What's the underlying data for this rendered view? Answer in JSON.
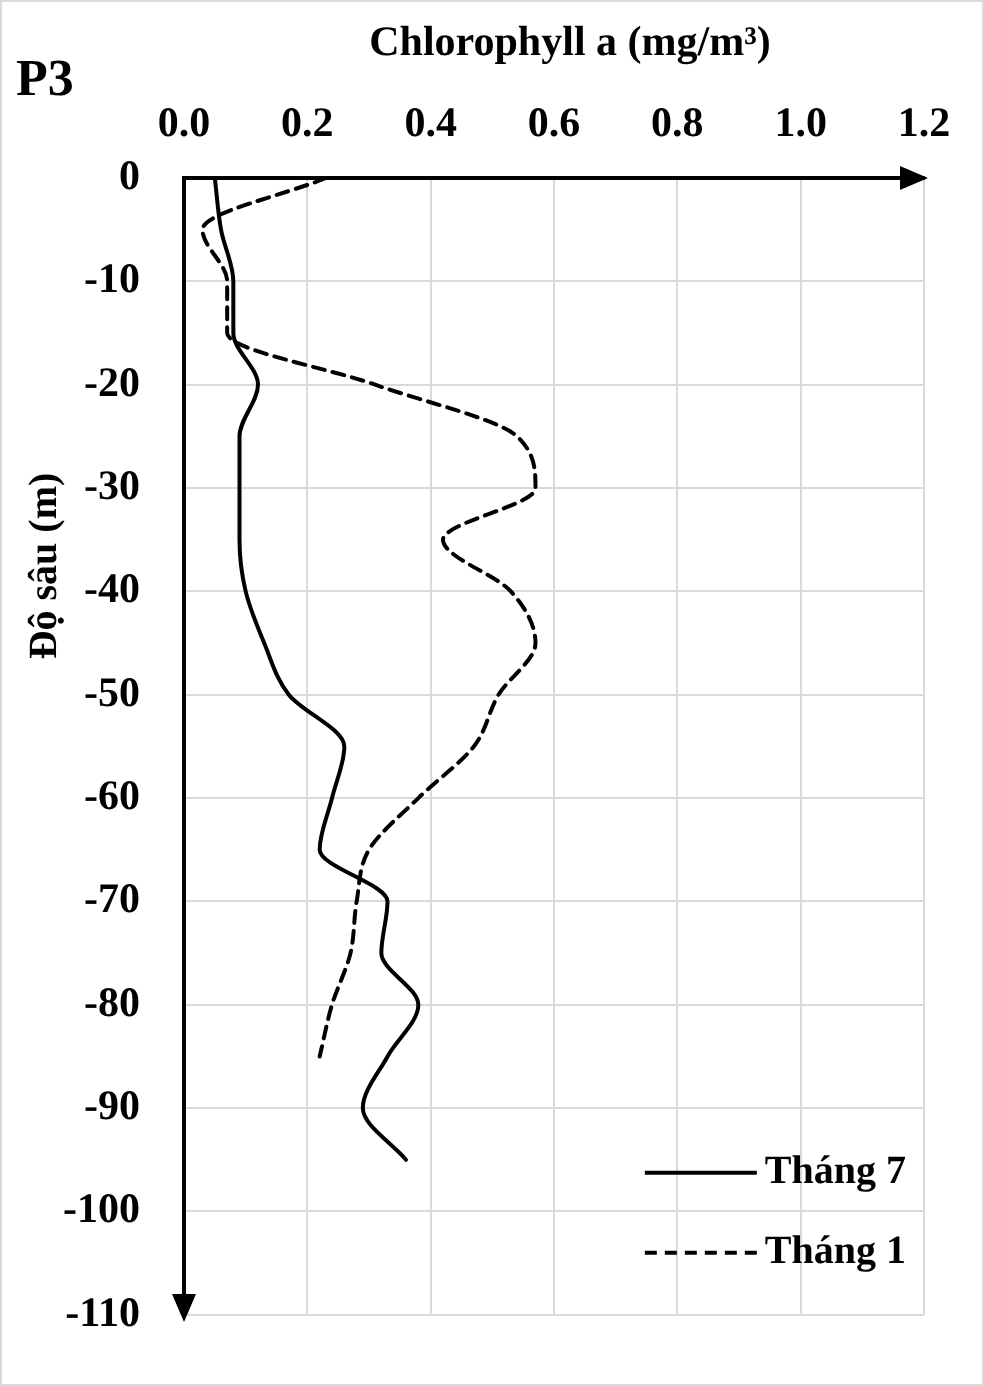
{
  "chart_data": {
    "type": "line",
    "title": "P3",
    "xlabel": "Chlorophyll a (mg/m³)",
    "ylabel": "Độ sâu (m)",
    "series": [
      {
        "name": "Tháng 7",
        "color": "#000000",
        "line_style": "solid",
        "x": [
          0.05,
          0.06,
          0.08,
          0.08,
          0.12,
          0.09,
          0.09,
          0.09,
          0.1,
          0.13,
          0.17,
          0.26,
          0.24,
          0.22,
          0.33,
          0.32,
          0.38,
          0.33,
          0.29,
          0.36
        ],
        "values": [
          0,
          -5,
          -10,
          -15,
          -20,
          -25,
          -30,
          -35,
          -40,
          -45,
          -50,
          -55,
          -60,
          -65,
          -70,
          -75,
          -80,
          -85,
          -90,
          -95
        ]
      },
      {
        "name": "Tháng 1",
        "color": "#000000",
        "line_style": "dashed",
        "x": [
          0.23,
          0.03,
          0.07,
          0.07,
          0.31,
          0.54,
          0.57,
          0.42,
          0.53,
          0.57,
          0.51,
          0.47,
          0.38,
          0.3,
          0.28,
          0.27,
          0.24,
          0.22
        ],
        "values": [
          0,
          -5,
          -10,
          -15,
          -20,
          -25,
          -30,
          -35,
          -40,
          -45,
          -50,
          -55,
          -60,
          -65,
          -70,
          -75,
          -80,
          -85
        ]
      }
    ],
    "xlim": [
      0,
      1.2
    ],
    "xticks": [
      {
        "value": 0,
        "label": "0.0"
      },
      0.2,
      0.4,
      0.6,
      0.8,
      {
        "value": 1,
        "label": "1.0"
      },
      1.2
    ],
    "ylim": [
      -110,
      0
    ],
    "yticks": [
      0,
      -10,
      -20,
      -30,
      -40,
      -50,
      -60,
      -70,
      -80,
      -90,
      -100,
      -110
    ],
    "grid": true,
    "legend": "bottom right",
    "marker": "none"
  }
}
